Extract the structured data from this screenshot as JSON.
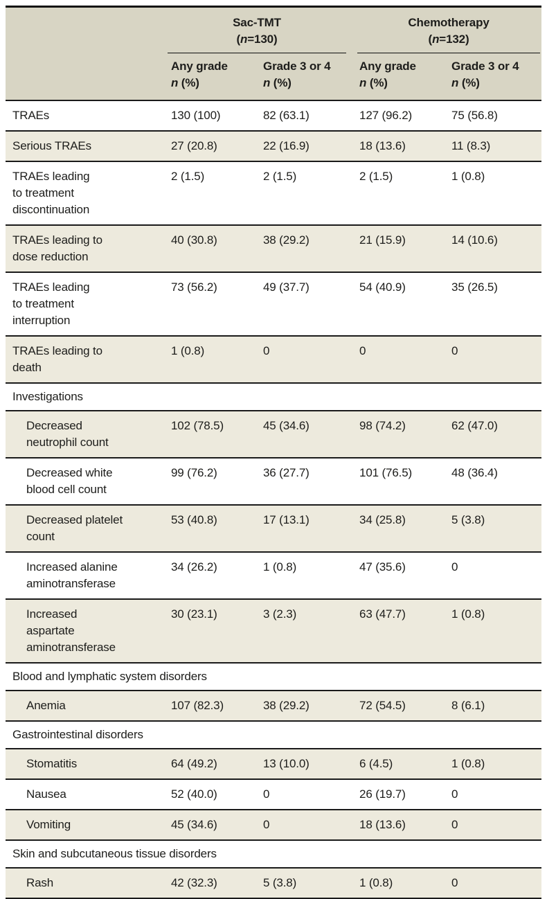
{
  "colors": {
    "header_bg": "#d8d5c4",
    "stripe_bg": "#edeadd",
    "rule": "#1a1a1a",
    "text": "#1d1d1b"
  },
  "table": {
    "groups": [
      {
        "title": "Sac-TMT",
        "n_open": "(",
        "n_label": "n",
        "n_rest": "=130)"
      },
      {
        "title": "Chemotherapy",
        "n_open": "(",
        "n_label": "n",
        "n_rest": "=132)"
      }
    ],
    "subheaders": [
      {
        "line1": "Any grade",
        "n_label": "n",
        "pct": " (%)"
      },
      {
        "line1": "Grade 3 or 4",
        "n_label": "n",
        "pct": " (%)"
      },
      {
        "line1": "Any grade",
        "n_label": "n",
        "pct": " (%)"
      },
      {
        "line1": "Grade 3 or 4",
        "n_label": "n",
        "pct": " (%)"
      }
    ],
    "rows": [
      {
        "type": "data",
        "indent": false,
        "label": "TRAEs",
        "values": [
          "130 (100)",
          "82 (63.1)",
          "127 (96.2)",
          "75 (56.8)"
        ]
      },
      {
        "type": "data",
        "indent": false,
        "label": "Serious TRAEs",
        "values": [
          "27 (20.8)",
          "22 (16.9)",
          "18 (13.6)",
          "11 (8.3)"
        ]
      },
      {
        "type": "data",
        "indent": false,
        "label": "TRAEs leading\nto treatment\ndiscontinuation",
        "values": [
          "2 (1.5)",
          "2 (1.5)",
          "2 (1.5)",
          "1 (0.8)"
        ]
      },
      {
        "type": "data",
        "indent": false,
        "label": "TRAEs leading to\ndose reduction",
        "values": [
          "40 (30.8)",
          "38 (29.2)",
          "21 (15.9)",
          "14 (10.6)"
        ]
      },
      {
        "type": "data",
        "indent": false,
        "label": "TRAEs leading\nto treatment\ninterruption",
        "values": [
          "73 (56.2)",
          "49 (37.7)",
          "54 (40.9)",
          "35 (26.5)"
        ]
      },
      {
        "type": "data",
        "indent": false,
        "label": "TRAEs leading to\ndeath",
        "values": [
          "1 (0.8)",
          "0",
          "0",
          "0"
        ]
      },
      {
        "type": "section",
        "label": "Investigations"
      },
      {
        "type": "data",
        "indent": true,
        "label": "Decreased\nneutrophil count",
        "values": [
          "102 (78.5)",
          "45 (34.6)",
          "98 (74.2)",
          "62 (47.0)"
        ]
      },
      {
        "type": "data",
        "indent": true,
        "label": "Decreased white\nblood cell count",
        "values": [
          "99 (76.2)",
          "36 (27.7)",
          "101 (76.5)",
          "48 (36.4)"
        ]
      },
      {
        "type": "data",
        "indent": true,
        "label": "Decreased platelet\ncount",
        "values": [
          "53 (40.8)",
          "17 (13.1)",
          "34 (25.8)",
          "5 (3.8)"
        ]
      },
      {
        "type": "data",
        "indent": true,
        "label": "Increased alanine\naminotransferase",
        "values": [
          "34 (26.2)",
          "1 (0.8)",
          "47 (35.6)",
          "0"
        ]
      },
      {
        "type": "data",
        "indent": true,
        "label": "Increased\naspartate\naminotransferase",
        "values": [
          "30 (23.1)",
          "3 (2.3)",
          "63 (47.7)",
          "1 (0.8)"
        ]
      },
      {
        "type": "section",
        "label": "Blood and lymphatic system disorders"
      },
      {
        "type": "data",
        "indent": true,
        "label": "Anemia",
        "values": [
          "107 (82.3)",
          "38 (29.2)",
          "72 (54.5)",
          "8 (6.1)"
        ]
      },
      {
        "type": "section",
        "label": "Gastrointestinal disorders"
      },
      {
        "type": "data",
        "indent": true,
        "label": "Stomatitis",
        "values": [
          "64 (49.2)",
          "13 (10.0)",
          "6 (4.5)",
          "1 (0.8)"
        ]
      },
      {
        "type": "data",
        "indent": true,
        "label": "Nausea",
        "values": [
          "52 (40.0)",
          "0",
          "26 (19.7)",
          "0"
        ]
      },
      {
        "type": "data",
        "indent": true,
        "label": "Vomiting",
        "values": [
          "45 (34.6)",
          "0",
          "18 (13.6)",
          "0"
        ]
      },
      {
        "type": "section",
        "label": "Skin and subcutaneous tissue disorders"
      },
      {
        "type": "data",
        "indent": true,
        "label": "Rash",
        "values": [
          "42 (32.3)",
          "5 (3.8)",
          "1 (0.8)",
          "0"
        ]
      }
    ]
  }
}
